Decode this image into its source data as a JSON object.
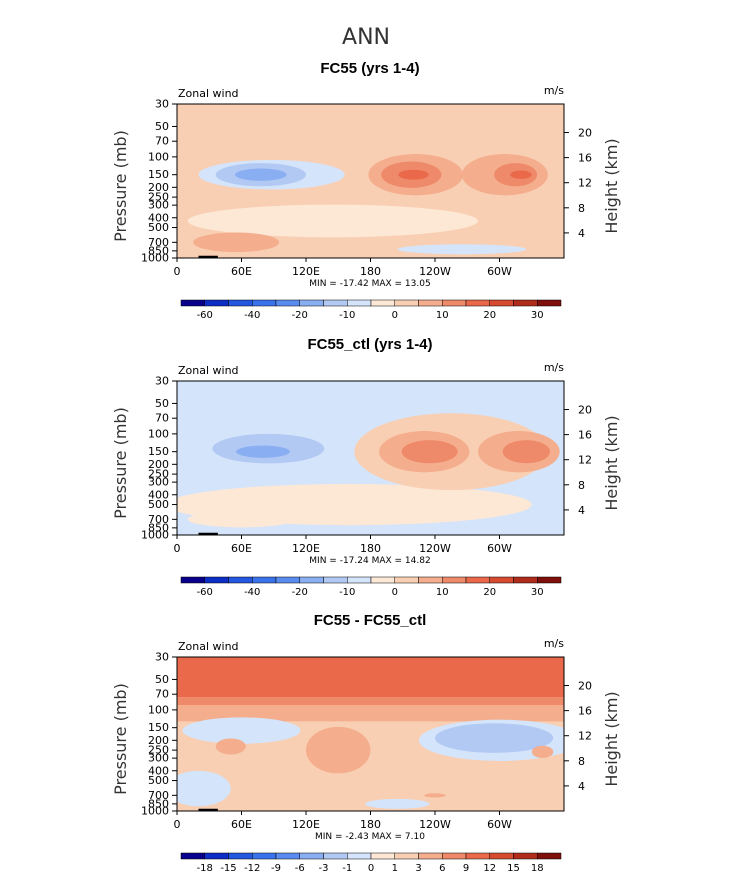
{
  "figure": {
    "title": "ANN"
  },
  "colors": {
    "neg": [
      "#08008a",
      "#0d2ec4",
      "#2457e0",
      "#3a72ec",
      "#5a8cf0",
      "#8aaef2",
      "#b2c9f4",
      "#d4e4fa"
    ],
    "pos": [
      "#fde8d6",
      "#f9cfb3",
      "#f4ad8d",
      "#ee8a69",
      "#e9694a",
      "#d64a2f",
      "#b02c1a",
      "#7e0f0a"
    ],
    "ground": "#000000"
  },
  "chart_data": [
    {
      "type": "heatmap",
      "title": "FC55 (yrs 1-4)",
      "left_label": "Zonal wind",
      "right_label": "m/s",
      "ylabel": "Pressure  (mb)",
      "ylabel_right": "Height  (km)",
      "x_ticks": [
        "0",
        "60E",
        "120E",
        "180",
        "120W",
        "60W"
      ],
      "x_range": [
        0,
        360
      ],
      "y_ticks": [
        "30",
        "50",
        "70",
        "100",
        "150",
        "200",
        "250",
        "300",
        "400",
        "500",
        "700",
        "850",
        "1000"
      ],
      "y_range": [
        30,
        1000
      ],
      "height_ticks": [
        "20",
        "16",
        "12",
        "8",
        "4"
      ],
      "minmax": "MIN = -17.42   MAX =  13.05",
      "min": -17.42,
      "max": 13.05,
      "background": 1,
      "colorbar": {
        "labels": [
          "-60",
          "-40",
          "-20",
          "-10",
          "0",
          "10",
          "20",
          "30"
        ]
      },
      "regions": [
        {
          "level": -1,
          "lon": 88,
          "p": 150,
          "dlon": 68,
          "dp": 1.4
        },
        {
          "level": -2,
          "lon": 78,
          "p": 150,
          "dlon": 42,
          "dp": 1.3
        },
        {
          "level": -3,
          "lon": 78,
          "p": 150,
          "dlon": 24,
          "dp": 1.15
        },
        {
          "level": 2,
          "lon": 222,
          "p": 150,
          "dlon": 44,
          "dp": 1.6
        },
        {
          "level": 2,
          "lon": 305,
          "p": 150,
          "dlon": 40,
          "dp": 1.6
        },
        {
          "level": 3,
          "lon": 218,
          "p": 150,
          "dlon": 28,
          "dp": 1.35
        },
        {
          "level": 3,
          "lon": 315,
          "p": 150,
          "dlon": 20,
          "dp": 1.3
        },
        {
          "level": 4,
          "lon": 220,
          "p": 150,
          "dlon": 14,
          "dp": 1.12
        },
        {
          "level": 4,
          "lon": 320,
          "p": 150,
          "dlon": 10,
          "dp": 1.1
        },
        {
          "level": 0,
          "lon": 145,
          "p": 430,
          "dlon": 135,
          "dp": 1.45
        },
        {
          "level": -1,
          "lon": 265,
          "p": 820,
          "dlon": 60,
          "dp": 1.12
        },
        {
          "level": 2,
          "lon": 55,
          "p": 700,
          "dlon": 40,
          "dp": 1.25
        }
      ]
    },
    {
      "type": "heatmap",
      "title": "FC55_ctl (yrs 1-4)",
      "left_label": "Zonal wind",
      "right_label": "m/s",
      "ylabel": "Pressure  (mb)",
      "ylabel_right": "Height  (km)",
      "x_ticks": [
        "0",
        "60E",
        "120E",
        "180",
        "120W",
        "60W"
      ],
      "x_range": [
        0,
        360
      ],
      "y_ticks": [
        "30",
        "50",
        "70",
        "100",
        "150",
        "200",
        "250",
        "300",
        "400",
        "500",
        "700",
        "850",
        "1000"
      ],
      "y_range": [
        30,
        1000
      ],
      "height_ticks": [
        "20",
        "16",
        "12",
        "8",
        "4"
      ],
      "minmax": "MIN = -17.24   MAX =  14.82",
      "min": -17.24,
      "max": 14.82,
      "background": -1,
      "colorbar": {
        "labels": [
          "-60",
          "-40",
          "-20",
          "-10",
          "0",
          "10",
          "20",
          "30"
        ]
      },
      "regions": [
        {
          "level": 0,
          "lon": 160,
          "p": 500,
          "dlon": 170,
          "dp": 1.6
        },
        {
          "level": 1,
          "lon": 255,
          "p": 150,
          "dlon": 90,
          "dp": 2.4
        },
        {
          "level": 2,
          "lon": 230,
          "p": 150,
          "dlon": 42,
          "dp": 1.6
        },
        {
          "level": 2,
          "lon": 318,
          "p": 150,
          "dlon": 38,
          "dp": 1.6
        },
        {
          "level": 3,
          "lon": 235,
          "p": 150,
          "dlon": 26,
          "dp": 1.3
        },
        {
          "level": 3,
          "lon": 325,
          "p": 150,
          "dlon": 22,
          "dp": 1.3
        },
        {
          "level": -2,
          "lon": 85,
          "p": 140,
          "dlon": 52,
          "dp": 1.4
        },
        {
          "level": -3,
          "lon": 80,
          "p": 150,
          "dlon": 25,
          "dp": 1.15
        },
        {
          "level": -1,
          "lon": 20,
          "p": 150,
          "dlon": 12,
          "dp": 1.2
        },
        {
          "level": 0,
          "lon": 60,
          "p": 700,
          "dlon": 50,
          "dp": 1.2
        }
      ]
    },
    {
      "type": "heatmap",
      "title": "FC55 - FC55_ctl",
      "left_label": "Zonal wind",
      "right_label": "m/s",
      "ylabel": "Pressure  (mb)",
      "ylabel_right": "Height  (km)",
      "x_ticks": [
        "0",
        "60E",
        "120E",
        "180",
        "120W",
        "60W"
      ],
      "x_range": [
        0,
        360
      ],
      "y_ticks": [
        "30",
        "50",
        "70",
        "100",
        "150",
        "200",
        "250",
        "300",
        "400",
        "500",
        "700",
        "850",
        "1000"
      ],
      "y_range": [
        30,
        1000
      ],
      "height_ticks": [
        "20",
        "16",
        "12",
        "8",
        "4"
      ],
      "minmax": "MIN =  -2.43   MAX =   7.10",
      "min": -2.43,
      "max": 7.1,
      "background": 1,
      "colorbar": {
        "labels": [
          "-18",
          "-15",
          "-12",
          "-9",
          "-6",
          "-3",
          "-1",
          "0",
          "1",
          "3",
          "6",
          "9",
          "12",
          "15",
          "18"
        ]
      },
      "bands": [
        {
          "level": 4,
          "p_top": 30,
          "p_bot": 75
        },
        {
          "level": 3,
          "p_top": 75,
          "p_bot": 90
        },
        {
          "level": 2,
          "p_top": 90,
          "p_bot": 130
        }
      ],
      "regions": [
        {
          "level": -1,
          "lon": 300,
          "p": 200,
          "dlon": 75,
          "dp": 1.6
        },
        {
          "level": -2,
          "lon": 295,
          "p": 190,
          "dlon": 55,
          "dp": 1.4
        },
        {
          "level": -1,
          "lon": 60,
          "p": 160,
          "dlon": 55,
          "dp": 1.35
        },
        {
          "level": 2,
          "lon": 150,
          "p": 250,
          "dlon": 30,
          "dp": 1.7
        },
        {
          "level": 2,
          "lon": 50,
          "p": 230,
          "dlon": 14,
          "dp": 1.2
        },
        {
          "level": 2,
          "lon": 340,
          "p": 260,
          "dlon": 10,
          "dp": 1.15
        },
        {
          "level": -1,
          "lon": 20,
          "p": 600,
          "dlon": 30,
          "dp": 1.5
        },
        {
          "level": -1,
          "lon": 205,
          "p": 850,
          "dlon": 30,
          "dp": 1.12
        },
        {
          "level": 2,
          "lon": 240,
          "p": 700,
          "dlon": 10,
          "dp": 1.05
        }
      ]
    }
  ]
}
